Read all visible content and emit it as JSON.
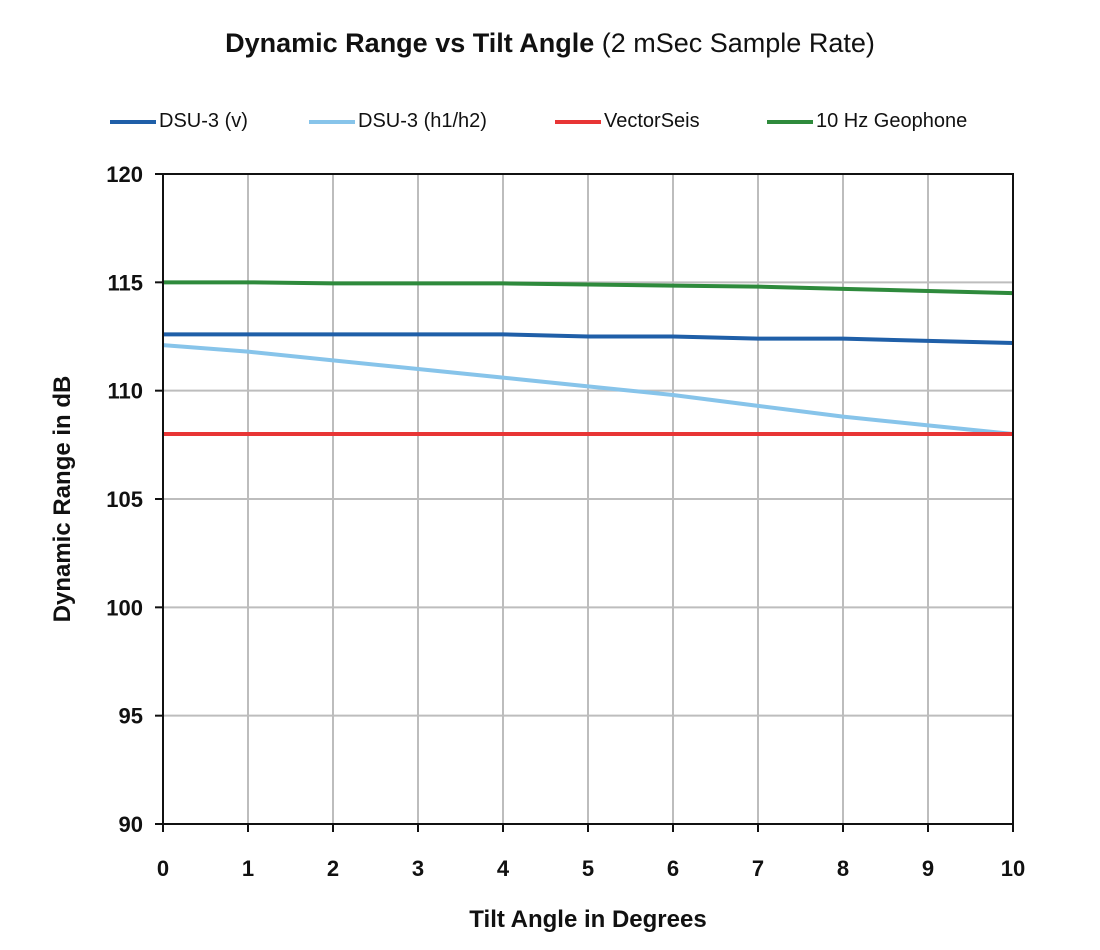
{
  "chart_data": {
    "type": "line",
    "title": "Dynamic Range vs Tilt Angle",
    "subtitle": "(2 mSec Sample Rate)",
    "xlabel": "Tilt Angle in Degrees",
    "ylabel": "Dynamic Range in dB",
    "xlim": [
      0,
      10
    ],
    "ylim": [
      90,
      120
    ],
    "xticks": [
      "0",
      "1",
      "2",
      "3",
      "4",
      "5",
      "6",
      "7",
      "8",
      "9",
      "10"
    ],
    "yticks": [
      "120",
      "115",
      "110",
      "105",
      "100",
      "95",
      "90"
    ],
    "grid": true,
    "legend_position": "top",
    "x": [
      0,
      1,
      2,
      3,
      4,
      5,
      6,
      7,
      8,
      9,
      10
    ],
    "series": [
      {
        "name": "DSU-3 (v)",
        "color": "#1f5fa8",
        "values": [
          112.6,
          112.6,
          112.6,
          112.6,
          112.6,
          112.5,
          112.5,
          112.4,
          112.4,
          112.3,
          112.2
        ]
      },
      {
        "name": "DSU-3 (h1/h2)",
        "color": "#87c4ea",
        "values": [
          112.1,
          111.8,
          111.4,
          111.0,
          110.6,
          110.2,
          109.8,
          109.3,
          108.8,
          108.4,
          108.0
        ]
      },
      {
        "name": "VectorSeis",
        "color": "#e83535",
        "values": [
          108.0,
          108.0,
          108.0,
          108.0,
          108.0,
          108.0,
          108.0,
          108.0,
          108.0,
          108.0,
          108.0
        ]
      },
      {
        "name": "10 Hz Geophone",
        "color": "#2e8a3c",
        "values": [
          115.0,
          115.0,
          114.95,
          114.95,
          114.95,
          114.9,
          114.85,
          114.8,
          114.7,
          114.6,
          114.5
        ]
      }
    ]
  }
}
